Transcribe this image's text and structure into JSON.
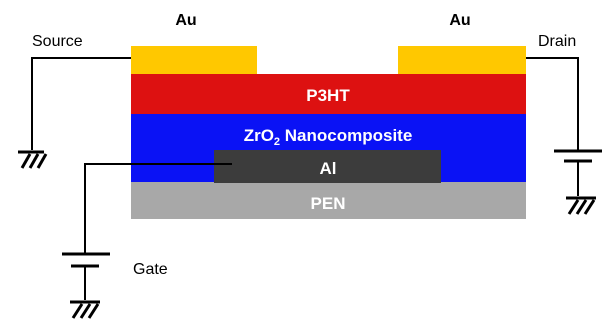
{
  "labels": {
    "source": "Source",
    "drain": "Drain",
    "gate": "Gate",
    "au_left": "Au",
    "au_right": "Au"
  },
  "layers": {
    "p3ht": "P3HT",
    "dielectric_main": "ZrO",
    "dielectric_sub": "2",
    "dielectric_rest": " Nanocomposite",
    "gate_metal": "Al",
    "substrate": "PEN"
  },
  "colors": {
    "gold": "#ffc800",
    "p3ht": "#dd1111",
    "dielectric": "#0a12f5",
    "aluminum": "#3c3c3c",
    "substrate": "#a8a8a8"
  }
}
